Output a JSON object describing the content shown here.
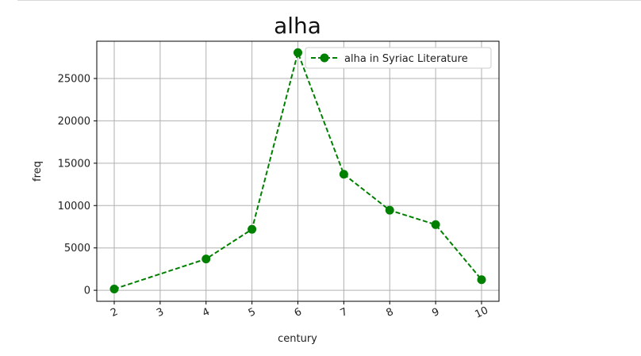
{
  "chart_data": {
    "type": "line",
    "title": "alha",
    "xlabel": "century",
    "ylabel": "freq",
    "x": [
      2,
      4,
      5,
      6,
      7,
      8,
      9,
      10
    ],
    "x_ticks": [
      "2",
      "3",
      "4",
      "5",
      "6",
      "7",
      "8",
      "9",
      "10"
    ],
    "x_tick_values": [
      2,
      3,
      4,
      5,
      6,
      7,
      8,
      9,
      10
    ],
    "xlim": [
      1.62,
      10.38
    ],
    "y_ticks": [
      "0",
      "5000",
      "10000",
      "15000",
      "20000",
      "25000"
    ],
    "y_tick_values": [
      0,
      5000,
      10000,
      15000,
      20000,
      25000
    ],
    "ylim": [
      -1300,
      29400
    ],
    "series": [
      {
        "name": "alha in Syriac Literature",
        "values": [
          150,
          3700,
          7200,
          28050,
          13700,
          9450,
          7750,
          1250
        ],
        "color": "#008000",
        "line_style": "dashed",
        "marker": "circle"
      }
    ],
    "grid": true,
    "legend_position": "top-right"
  }
}
